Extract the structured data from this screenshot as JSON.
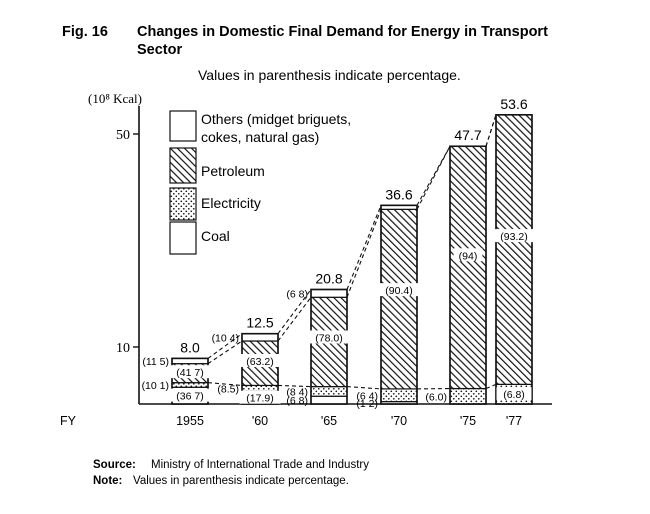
{
  "figure": {
    "label": "Fig. 16",
    "title_line1": "Changes in Domestic Final Demand for Energy in Transport",
    "title_line2": "Sector",
    "subtitle": "Values in parenthesis indicate percentage."
  },
  "footer": {
    "source_label": "Source:",
    "source_text": "Ministry of International Trade and Industry",
    "note_label": "Note:",
    "note_text": "Values in parenthesis indicate percentage."
  },
  "chart_data": {
    "type": "bar",
    "stacked": true,
    "unit_label": "(10⁸ Kcal)",
    "x_prefix": "FY",
    "categories": [
      "1955",
      "'60",
      "'65",
      "'70",
      "'75",
      "'77"
    ],
    "totals": [
      8.0,
      12.5,
      20.8,
      36.6,
      47.7,
      53.6
    ],
    "total_labels": [
      "8.0",
      "12.5",
      "20.8",
      "36.6",
      "47.7",
      "53.6"
    ],
    "y_ticks": [
      {
        "value": 10,
        "label": "10"
      },
      {
        "value": 50,
        "label": "50"
      }
    ],
    "ylim": [
      0,
      55
    ],
    "y_scale": "broken",
    "series": [
      {
        "name": "Coal",
        "pattern": "blank",
        "percentages": [
          36.7,
          17.9,
          6.8,
          1.2,
          0,
          0
        ]
      },
      {
        "name": "Electricity",
        "pattern": "dotted",
        "percentages": [
          10.1,
          8.5,
          8.4,
          6.4,
          6.0,
          6.8
        ]
      },
      {
        "name": "Petroleum",
        "pattern": "hatched",
        "percentages": [
          41.7,
          63.2,
          78.0,
          90.4,
          94.0,
          93.2
        ]
      },
      {
        "name": "Others (midget briguets, cokes, natural gas)",
        "pattern": "blank",
        "percentages": [
          11.5,
          10.4,
          6.8,
          2.0,
          0,
          0
        ]
      }
    ],
    "pct_labels": [
      {
        "bar": 0,
        "series": "Coal",
        "text": "(36 7)",
        "side": "inside"
      },
      {
        "bar": 0,
        "series": "Electricity",
        "text": "(10 1)",
        "side": "left"
      },
      {
        "bar": 0,
        "series": "Petroleum",
        "text": "(41 7)",
        "side": "inside"
      },
      {
        "bar": 0,
        "series": "Others",
        "text": "(11 5)",
        "side": "left"
      },
      {
        "bar": 1,
        "series": "Coal",
        "text": "(17.9)",
        "side": "inside"
      },
      {
        "bar": 1,
        "series": "Electricity",
        "text": "(8.5)",
        "side": "left"
      },
      {
        "bar": 1,
        "series": "Petroleum",
        "text": "(63.2)",
        "side": "inside"
      },
      {
        "bar": 1,
        "series": "Others",
        "text": "(10 4)",
        "side": "left"
      },
      {
        "bar": 2,
        "series": "Coal",
        "text": "(6 8)",
        "side": "left"
      },
      {
        "bar": 2,
        "series": "Electricity",
        "text": "(8 4)",
        "side": "left"
      },
      {
        "bar": 2,
        "series": "Petroleum",
        "text": "(78.0)",
        "side": "inside"
      },
      {
        "bar": 2,
        "series": "Others",
        "text": "(6 8)",
        "side": "left"
      },
      {
        "bar": 3,
        "series": "Coal",
        "text": "(1 2)",
        "side": "left"
      },
      {
        "bar": 3,
        "series": "Electricity",
        "text": "(6 4)",
        "side": "left"
      },
      {
        "bar": 3,
        "series": "Petroleum",
        "text": "(90.4)",
        "side": "inside"
      },
      {
        "bar": 4,
        "series": "Electricity",
        "text": "(6.0)",
        "side": "left"
      },
      {
        "bar": 4,
        "series": "Petroleum",
        "text": "(94)",
        "side": "inside"
      },
      {
        "bar": 5,
        "series": "Electricity",
        "text": "(6.8)",
        "side": "inside"
      },
      {
        "bar": 5,
        "series": "Petroleum",
        "text": "(93.2)",
        "side": "inside"
      }
    ],
    "legend": {
      "placement": "top-left",
      "items": [
        {
          "key": "others",
          "line1": "Others (midget briguets,",
          "line2": "cokes, natural gas)"
        },
        {
          "key": "petroleum",
          "line1": "Petroleum"
        },
        {
          "key": "electricity",
          "line1": "Electricity"
        },
        {
          "key": "coal",
          "line1": "Coal"
        }
      ]
    }
  }
}
